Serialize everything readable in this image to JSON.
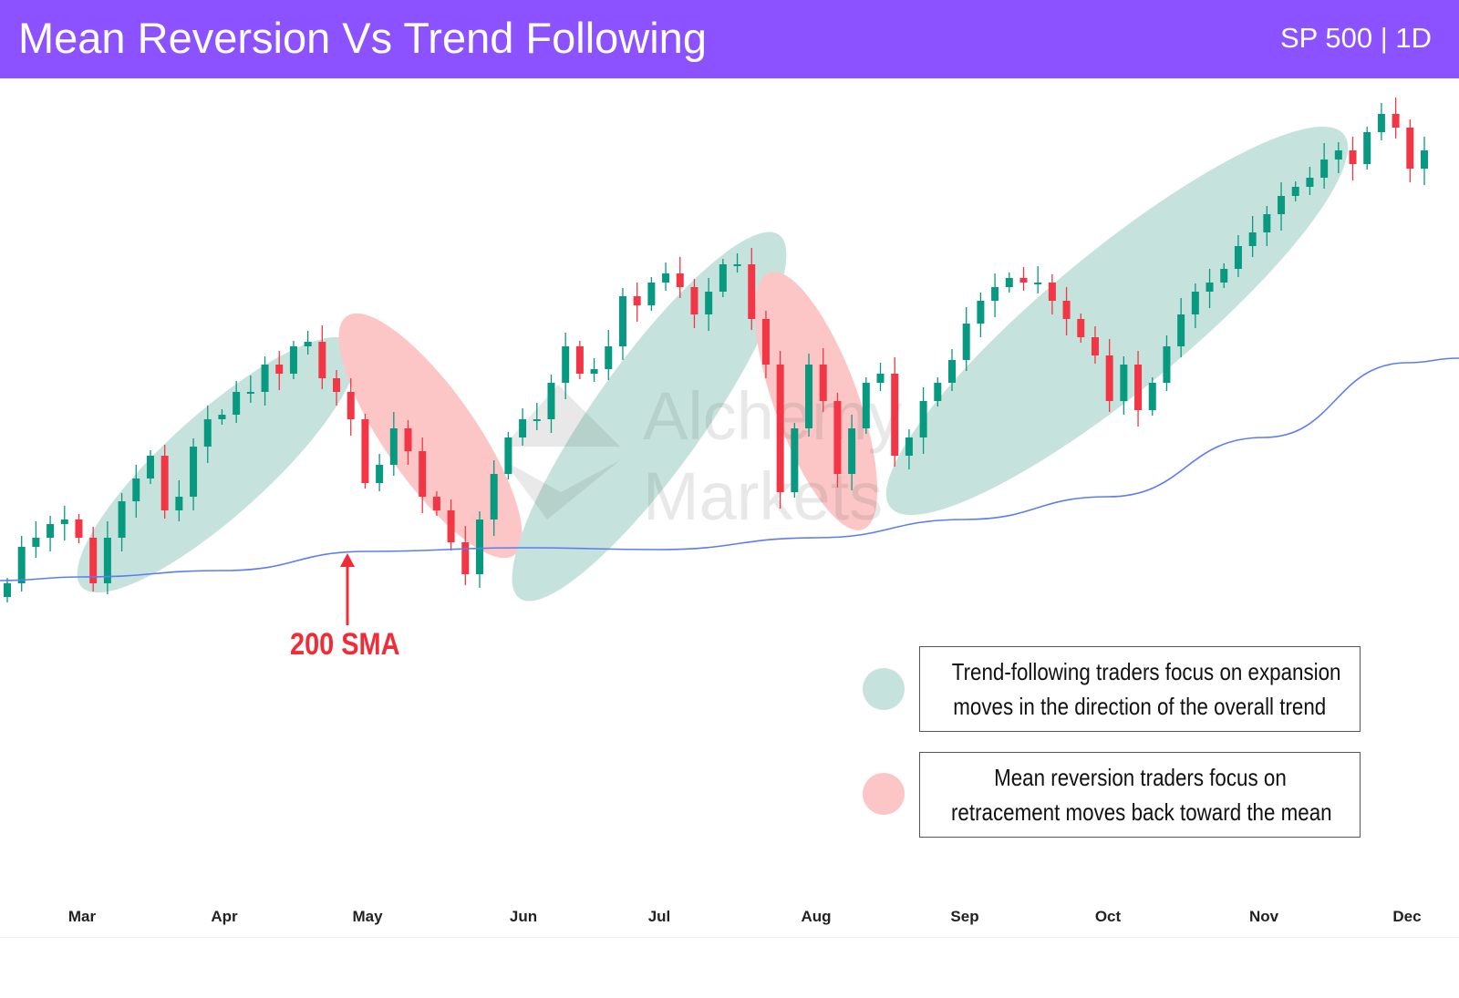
{
  "header": {
    "title": "Mean Reversion Vs Trend Following",
    "subtitle": "SP 500 | 1D"
  },
  "watermark": {
    "line1": "Alchemy",
    "line2": "Markets"
  },
  "annotation": {
    "label": "200 SMA",
    "arrow_icon": "arrow-up-icon"
  },
  "legend": [
    {
      "color": "#c5e3dc",
      "text_line1": "Trend-following traders focus on expansion",
      "text_line2": "moves in the direction of the overall trend"
    },
    {
      "color": "#fcc6c6",
      "text_line1": "Mean reversion traders focus on",
      "text_line2": "retracement moves back toward the mean"
    }
  ],
  "colors": {
    "header": "#8c52ff",
    "up_candle": "#089981",
    "down_candle": "#f23645",
    "sma": "#5b7cf5",
    "trend_zone": "#c5e3dc",
    "reversion_zone": "#fcc6c6",
    "annotation": "#f22c36"
  },
  "chart_data": {
    "type": "candlestick",
    "title": "Mean Reversion Vs Trend Following",
    "subtitle": "SP 500 | 1D",
    "x_tick_labels": [
      "Mar",
      "Apr",
      "May",
      "Jun",
      "Jul",
      "Aug",
      "Sep",
      "Oct",
      "Nov",
      "Dec"
    ],
    "y_axis_shown": false,
    "grid": false,
    "close": [
      5000,
      5080,
      5100,
      5130,
      5140,
      5100,
      5000,
      5100,
      5180,
      5230,
      5280,
      5160,
      5190,
      5300,
      5360,
      5370,
      5420,
      5420,
      5480,
      5460,
      5520,
      5530,
      5450,
      5420,
      5360,
      5220,
      5260,
      5340,
      5290,
      5190,
      5160,
      5090,
      5020,
      5140,
      5240,
      5320,
      5360,
      5360,
      5440,
      5520,
      5460,
      5470,
      5520,
      5630,
      5610,
      5660,
      5680,
      5650,
      5590,
      5640,
      5700,
      5700,
      5580,
      5480,
      5200,
      5340,
      5480,
      5400,
      5240,
      5340,
      5440,
      5460,
      5280,
      5320,
      5400,
      5440,
      5490,
      5570,
      5620,
      5650,
      5670,
      5660,
      5660,
      5620,
      5580,
      5540,
      5500,
      5400,
      5480,
      5380,
      5440,
      5520,
      5590,
      5640,
      5660,
      5690,
      5740,
      5770,
      5810,
      5850,
      5870,
      5890,
      5930,
      5950,
      5920,
      5990,
      6030,
      6000,
      5910,
      5950
    ],
    "sma_200": {
      "name": "200 SMA",
      "start": 5006,
      "at_month_ticks": [
        5014,
        5028,
        5070,
        5078,
        5074,
        5100,
        5140,
        5190,
        5320,
        5484
      ],
      "end": 5494
    },
    "zones": [
      {
        "type": "trend-following",
        "from": "Mar",
        "to": "May"
      },
      {
        "type": "mean-reversion",
        "from": "May",
        "to": "Jun"
      },
      {
        "type": "trend-following",
        "from": "Jun",
        "to": "Jul"
      },
      {
        "type": "mean-reversion",
        "from": "Aug",
        "to": "Aug"
      },
      {
        "type": "trend-following",
        "from": "Sep",
        "to": "Nov"
      }
    ]
  }
}
